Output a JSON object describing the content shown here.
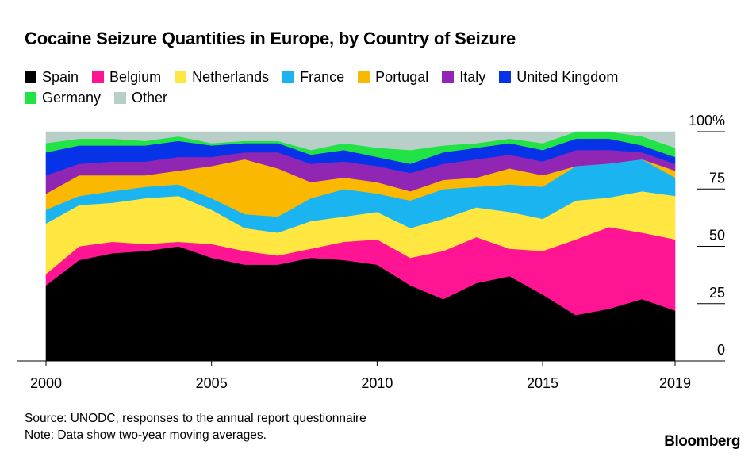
{
  "title": "Cocaine Seizure Quantities in Europe, by Country of Seizure",
  "legend": [
    {
      "label": "Spain",
      "color": "#000000"
    },
    {
      "label": "Belgium",
      "color": "#ff1493"
    },
    {
      "label": "Netherlands",
      "color": "#ffe640"
    },
    {
      "label": "France",
      "color": "#1ab5f0"
    },
    {
      "label": "Portugal",
      "color": "#fbb800"
    },
    {
      "label": "Italy",
      "color": "#9126b5"
    },
    {
      "label": "United Kingdom",
      "color": "#0733e8"
    },
    {
      "label": "Germany",
      "color": "#22e345"
    },
    {
      "label": "Other",
      "color": "#b8cfc9"
    }
  ],
  "footer": {
    "source": "Source: UNODC, responses to the annual report questionnaire",
    "note": "Note: Data show two-year moving averages."
  },
  "brand": "Bloomberg",
  "chart_data": {
    "type": "area",
    "stacked": true,
    "unit": "%",
    "x": [
      2000,
      2001,
      2002,
      2003,
      2004,
      2005,
      2006,
      2007,
      2008,
      2009,
      2010,
      2011,
      2012,
      2013,
      2014,
      2015,
      2016,
      2017,
      2018,
      2019
    ],
    "x_tick_labels": [
      "2000",
      "2005",
      "2010",
      "2015",
      "2019"
    ],
    "x_ticks": [
      2000,
      2005,
      2010,
      2015,
      2019
    ],
    "y_tick_labels": [
      "0",
      "25",
      "50",
      "75",
      "100%"
    ],
    "y_ticks": [
      0,
      25,
      50,
      75,
      100
    ],
    "ylim": [
      0,
      100
    ],
    "series": [
      {
        "name": "Spain",
        "color": "#000000",
        "values": [
          33,
          44,
          47,
          48,
          50,
          45,
          42,
          42,
          45,
          44,
          42,
          33,
          27,
          34,
          37,
          29,
          20,
          23,
          27,
          22
        ]
      },
      {
        "name": "Belgium",
        "color": "#ff1493",
        "values": [
          5,
          6,
          5,
          3,
          2,
          6,
          6,
          4,
          4,
          8,
          11,
          12,
          21,
          20,
          12,
          19,
          33,
          36,
          29,
          31
        ]
      },
      {
        "name": "Netherlands",
        "color": "#ffe640",
        "values": [
          22,
          18,
          17,
          20,
          20,
          15,
          10,
          10,
          12,
          11,
          12,
          13,
          14,
          13,
          16,
          14,
          17,
          13,
          18,
          19
        ]
      },
      {
        "name": "France",
        "color": "#1ab5f0",
        "values": [
          6,
          4,
          5,
          5,
          5,
          5,
          6,
          7,
          10,
          12,
          8,
          12,
          13,
          9,
          12,
          14,
          15,
          15,
          14,
          8
        ]
      },
      {
        "name": "Portugal",
        "color": "#fbb800",
        "values": [
          7,
          9,
          7,
          5,
          6,
          14,
          24,
          21,
          7,
          5,
          5,
          4,
          4,
          4,
          7,
          5,
          0,
          0,
          0,
          3
        ]
      },
      {
        "name": "Italy",
        "color": "#9126b5",
        "values": [
          8,
          5,
          6,
          6,
          6,
          4,
          3,
          7,
          8,
          7,
          7,
          8,
          7,
          8,
          6,
          6,
          7,
          6,
          3,
          3
        ]
      },
      {
        "name": "United Kingdom",
        "color": "#0733e8",
        "values": [
          10,
          8,
          7,
          7,
          7,
          5,
          4,
          4,
          4,
          5,
          4,
          4,
          5,
          5,
          5,
          5,
          5,
          5,
          3,
          3
        ]
      },
      {
        "name": "Germany",
        "color": "#22e345",
        "values": [
          4,
          3,
          3,
          2,
          2,
          1,
          1,
          1,
          2,
          3,
          4,
          6,
          3,
          2,
          2,
          3,
          3,
          3,
          4,
          4
        ]
      },
      {
        "name": "Other",
        "color": "#b8cfc9",
        "values": [
          5,
          3,
          3,
          4,
          2,
          5,
          4,
          4,
          8,
          5,
          7,
          8,
          6,
          5,
          3,
          5,
          0,
          0,
          2,
          7
        ]
      }
    ]
  }
}
